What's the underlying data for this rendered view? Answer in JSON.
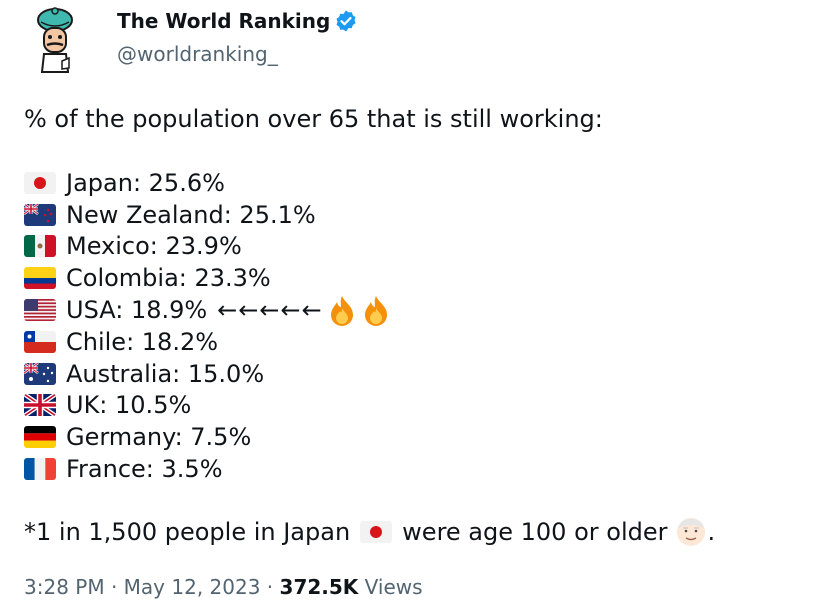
{
  "author": {
    "display_name": "The World Ranking",
    "handle": "@worldranking_",
    "verified": true
  },
  "tweet": {
    "intro": "% of the population over 65 that is still working:",
    "rows": [
      {
        "flag": "japan",
        "text": "Japan: 25.6%"
      },
      {
        "flag": "new-zealand",
        "text": "New Zealand: 25.1%"
      },
      {
        "flag": "mexico",
        "text": "Mexico: 23.9%"
      },
      {
        "flag": "colombia",
        "text": "Colombia: 23.3%"
      },
      {
        "flag": "usa",
        "text": "USA: 18.9%",
        "arrows": "←←←←←",
        "emoji": [
          "fire",
          "fire"
        ]
      },
      {
        "flag": "chile",
        "text": "Chile: 18.2%"
      },
      {
        "flag": "australia",
        "text": "Australia: 15.0%"
      },
      {
        "flag": "uk",
        "text": "UK: 10.5%"
      },
      {
        "flag": "germany",
        "text": "Germany: 7.5%"
      },
      {
        "flag": "france",
        "text": "France: 3.5%"
      }
    ],
    "footnote_part1": "*1 in 1,500 people in Japan",
    "footnote_part2": "were age 100 or older",
    "footnote_end": "."
  },
  "meta": {
    "time": "3:28 PM",
    "separator": " · ",
    "date": "May 12, 2023",
    "views_count": "372.5K",
    "views_label": " Views"
  },
  "colors": {
    "text": "#0f1419",
    "secondary": "#536471",
    "verified_badge": "#1d9bf0"
  }
}
